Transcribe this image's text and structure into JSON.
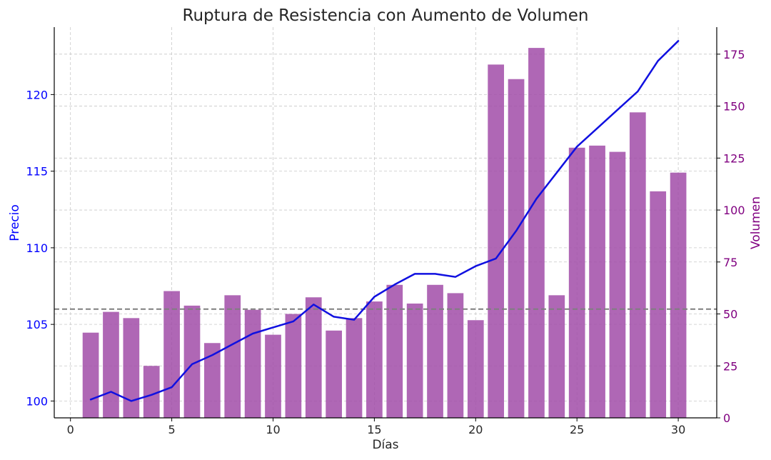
{
  "chart_data": {
    "type": "bar+line",
    "title": "Ruptura de Resistencia con Aumento de Volumen",
    "xlabel": "Días",
    "ylabel_left": "Precio",
    "ylabel_right": "Volumen",
    "xlim": [
      -0.8,
      31.9
    ],
    "ylim_left": [
      98.9,
      124.4
    ],
    "ylim_right": [
      0,
      188
    ],
    "x_ticks": [
      0,
      5,
      10,
      15,
      20,
      25,
      30
    ],
    "y_left_ticks": [
      100,
      105,
      110,
      115,
      120
    ],
    "y_right_ticks": [
      0,
      25,
      50,
      75,
      100,
      125,
      150,
      175
    ],
    "grid": true,
    "resistance_line": {
      "axis": "left",
      "value": 106.0,
      "style": "dashed",
      "color": "#7f7f7f"
    },
    "x": [
      1,
      2,
      3,
      4,
      5,
      6,
      7,
      8,
      9,
      10,
      11,
      12,
      13,
      14,
      15,
      16,
      17,
      18,
      19,
      20,
      21,
      22,
      23,
      24,
      25,
      26,
      27,
      28,
      29,
      30
    ],
    "series": [
      {
        "name": "Volumen",
        "type": "bar",
        "axis": "right",
        "color": "#a14ca8",
        "values": [
          41,
          51,
          48,
          25,
          61,
          54,
          36,
          59,
          52,
          40,
          50,
          58,
          42,
          48,
          56,
          64,
          55,
          64,
          60,
          47,
          170,
          163,
          178,
          59,
          130,
          131,
          128,
          147,
          109,
          118
        ]
      },
      {
        "name": "Precio",
        "type": "line",
        "axis": "left",
        "color": "#1010e0",
        "values": [
          100.1,
          100.6,
          100.0,
          100.4,
          100.9,
          102.4,
          103.0,
          103.7,
          104.4,
          104.8,
          105.2,
          106.3,
          105.5,
          105.3,
          106.8,
          107.6,
          108.3,
          108.3,
          108.1,
          108.8,
          109.3,
          111.1,
          113.2,
          114.9,
          116.6,
          117.8,
          119.0,
          120.2,
          122.2,
          123.5
        ]
      }
    ],
    "colors": {
      "left_axis": "#0000ff",
      "right_axis": "#800080",
      "text": "#262626"
    }
  }
}
